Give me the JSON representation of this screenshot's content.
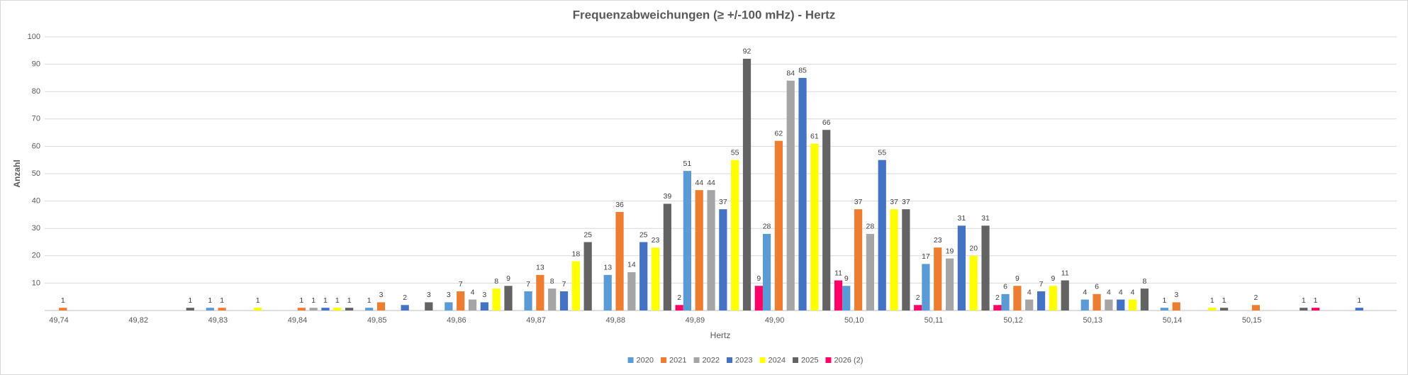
{
  "chart_data": {
    "type": "bar",
    "title": "Frequenzabweichungen (≥ +/-100 mHz) - Hertz",
    "x_label": "Hertz",
    "y_label": "Anzahl",
    "categories": [
      "49,74",
      "49,82",
      "49,83",
      "49,84",
      "49,85",
      "49,86",
      "49,87",
      "49,88",
      "49,89",
      "49,90",
      "50,10",
      "50,11",
      "50,12",
      "50,13",
      "50,14",
      "50,15",
      null
    ],
    "series": [
      {
        "name": "2020",
        "color": "#5b9bd5",
        "values": [
          null,
          null,
          1,
          null,
          1,
          3,
          7,
          13,
          51,
          28,
          9,
          17,
          6,
          4,
          1,
          null,
          null
        ]
      },
      {
        "name": "2021",
        "color": "#ed7d31",
        "values": [
          1,
          null,
          1,
          1,
          3,
          7,
          13,
          36,
          44,
          62,
          37,
          23,
          9,
          6,
          3,
          2,
          null
        ]
      },
      {
        "name": "2022",
        "color": "#a5a5a5",
        "values": [
          null,
          null,
          null,
          1,
          null,
          4,
          8,
          14,
          44,
          84,
          28,
          19,
          4,
          4,
          null,
          null,
          null
        ]
      },
      {
        "name": "2023",
        "color": "#4472c4",
        "values": [
          null,
          null,
          null,
          1,
          2,
          3,
          7,
          25,
          37,
          85,
          55,
          31,
          7,
          4,
          null,
          null,
          1
        ]
      },
      {
        "name": "2024",
        "color": "#ffff00",
        "values": [
          null,
          null,
          1,
          1,
          null,
          8,
          18,
          23,
          55,
          61,
          37,
          20,
          9,
          4,
          1,
          null,
          null
        ]
      },
      {
        "name": "2025",
        "color": "#636363",
        "values": [
          null,
          1,
          null,
          1,
          3,
          9,
          25,
          39,
          92,
          66,
          37,
          31,
          11,
          8,
          1,
          1,
          null
        ]
      },
      {
        "name": "2026 (2)",
        "color": "#ff0066",
        "values": [
          null,
          null,
          null,
          null,
          null,
          null,
          null,
          2,
          9,
          11,
          2,
          2,
          null,
          null,
          null,
          1,
          null
        ]
      }
    ],
    "ylim": [
      0,
      100
    ],
    "yticks": [
      10,
      20,
      30,
      40,
      50,
      60,
      70,
      80,
      90,
      100
    ],
    "grid": true,
    "legend": "bottom"
  }
}
